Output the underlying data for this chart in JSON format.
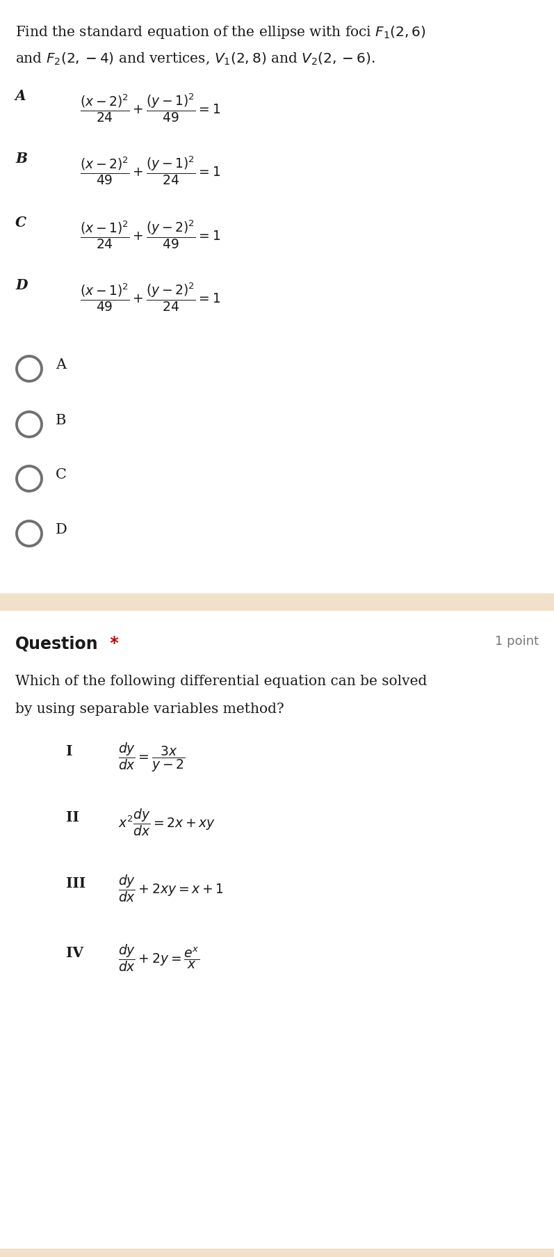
{
  "bg_color": "#ffffff",
  "separator_color": "#f2e0c8",
  "text_color": "#1a1a1a",
  "radio_color": "#707070",
  "question_label_color": "#cc0000",
  "point_color": "#777777",
  "q1_title_line1": "Find the standard equation of the ellipse with foci $F_1(2,6)$",
  "q1_title_line2": "and $F_2(2,-4)$ and vertices, $V_1(2,8)$ and $V_2(2,-6)$.",
  "opt_label_A": "A",
  "opt_label_B": "B",
  "opt_label_C": "C",
  "opt_label_D": "D",
  "option_A": "$\\dfrac{(x-2)^2}{24}+\\dfrac{(y-1)^2}{49}=1$",
  "option_B": "$\\dfrac{(x-2)^2}{49}+\\dfrac{(y-1)^2}{24}=1$",
  "option_C": "$\\dfrac{(x-1)^2}{24}+\\dfrac{(y-2)^2}{49}=1$",
  "option_D": "$\\dfrac{(x-1)^2}{49}+\\dfrac{(y-2)^2}{24}=1$",
  "radio_labels": [
    "A",
    "B",
    "C",
    "D"
  ],
  "q2_label": "Question",
  "q2_star": " *",
  "q2_points": "1 point",
  "q2_body_line1": "Which of the following differential equation can be solved",
  "q2_body_line2": "by using separable variables method?",
  "eq_I_label": "I",
  "eq_I": "$\\dfrac{dy}{dx}=\\dfrac{3x}{y-2}$",
  "eq_II_label": "II",
  "eq_II": "$x^2\\dfrac{dy}{dx}=2x+xy$",
  "eq_III_label": "III",
  "eq_III": "$\\dfrac{dy}{dx}+2xy=x+1$",
  "eq_IV_label": "IV",
  "eq_IV": "$\\dfrac{dy}{dx}+2y=\\dfrac{e^x}{x}$",
  "figw": 7.97,
  "figh": 18.07,
  "dpi": 100
}
